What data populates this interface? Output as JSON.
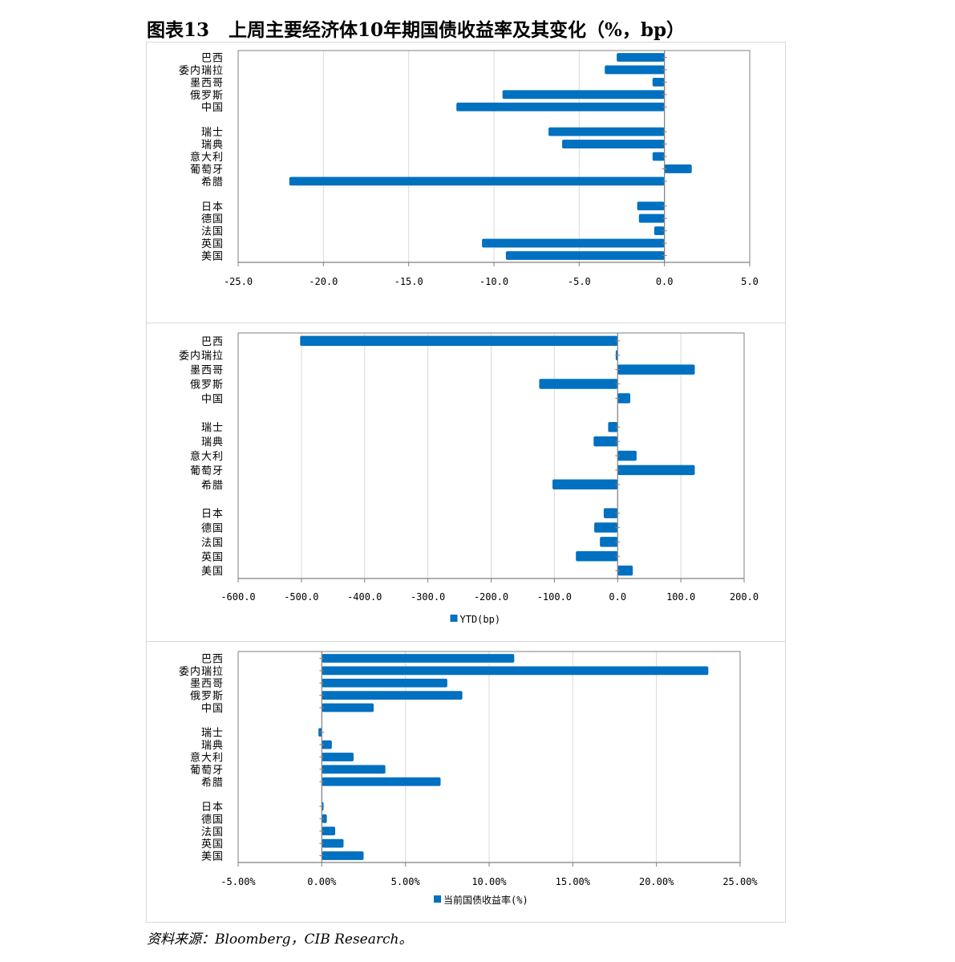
{
  "title": "图表13   上周主要经济体10年期国债收益率及其变化（%，bp）",
  "source": "资料来源：Bloomberg，CIB Research。",
  "colors": {
    "bar": "#0070c0",
    "grid": "#d9d9d9",
    "axis": "#808080",
    "border": "#d9d9d9"
  },
  "chart_data": [
    {
      "type": "bar",
      "orientation": "horizontal",
      "categories": [
        "巴西",
        "委内瑞拉",
        "墨西哥",
        "俄罗斯",
        "中国",
        "瑞士",
        "瑞典",
        "意大利",
        "葡萄牙",
        "希腊",
        "日本",
        "德国",
        "法国",
        "英国",
        "美国"
      ],
      "groups": [
        5,
        5,
        5
      ],
      "values": [
        -2.8,
        -3.5,
        -0.7,
        -9.5,
        -12.2,
        -6.8,
        -6.0,
        -0.7,
        1.6,
        -22.0,
        -1.6,
        -1.5,
        -0.6,
        -10.7,
        -9.3
      ],
      "xlim": [
        -25,
        5
      ],
      "xticks": [
        -25,
        -20,
        -15,
        -10,
        -5,
        0,
        5
      ],
      "xtick_labels": [
        "-25.0",
        "-20.0",
        "-15.0",
        "-10.0",
        "-5.0",
        "0.0",
        "5.0"
      ],
      "grid": true,
      "legend": ""
    },
    {
      "type": "bar",
      "orientation": "horizontal",
      "categories": [
        "巴西",
        "委内瑞拉",
        "墨西哥",
        "俄罗斯",
        "中国",
        "瑞士",
        "瑞典",
        "意大利",
        "葡萄牙",
        "希腊",
        "日本",
        "德国",
        "法国",
        "英国",
        "美国"
      ],
      "groups": [
        5,
        5,
        5
      ],
      "values": [
        -502,
        -3,
        122,
        -124,
        20,
        -15,
        -38,
        30,
        122,
        -103,
        -22,
        -37,
        -28,
        -66,
        24
      ],
      "xlim": [
        -600,
        200
      ],
      "xticks": [
        -600,
        -500,
        -400,
        -300,
        -200,
        -100,
        0,
        100,
        200
      ],
      "xtick_labels": [
        "-600.0",
        "-500.0",
        "-400.0",
        "-300.0",
        "-200.0",
        "-100.0",
        "0.0",
        "100.0",
        "200.0"
      ],
      "grid": true,
      "legend": "YTD(bp)"
    },
    {
      "type": "bar",
      "orientation": "horizontal",
      "categories": [
        "巴西",
        "委内瑞拉",
        "墨西哥",
        "俄罗斯",
        "中国",
        "瑞士",
        "瑞典",
        "意大利",
        "葡萄牙",
        "希腊",
        "日本",
        "德国",
        "法国",
        "英国",
        "美国"
      ],
      "groups": [
        5,
        5,
        5
      ],
      "values": [
        11.5,
        23.1,
        7.5,
        8.4,
        3.1,
        -0.2,
        0.6,
        1.9,
        3.8,
        7.1,
        0.1,
        0.3,
        0.8,
        1.3,
        2.5
      ],
      "xlim": [
        -5,
        25
      ],
      "xticks": [
        -5,
        0,
        5,
        10,
        15,
        20,
        25
      ],
      "xtick_labels": [
        "-5.00%",
        "0.00%",
        "5.00%",
        "10.00%",
        "15.00%",
        "20.00%",
        "25.00%"
      ],
      "grid": true,
      "legend": "当前国债收益率(%)"
    }
  ]
}
